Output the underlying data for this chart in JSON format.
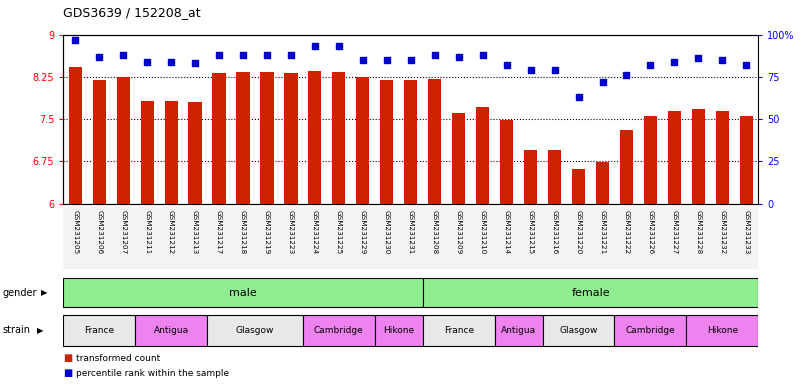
{
  "title": "GDS3639 / 152208_at",
  "samples": [
    "GSM231205",
    "GSM231206",
    "GSM231207",
    "GSM231211",
    "GSM231212",
    "GSM231213",
    "GSM231217",
    "GSM231218",
    "GSM231219",
    "GSM231223",
    "GSM231224",
    "GSM231225",
    "GSM231229",
    "GSM231230",
    "GSM231231",
    "GSM231208",
    "GSM231209",
    "GSM231210",
    "GSM231214",
    "GSM231215",
    "GSM231216",
    "GSM231220",
    "GSM231221",
    "GSM231222",
    "GSM231226",
    "GSM231227",
    "GSM231228",
    "GSM231232",
    "GSM231233"
  ],
  "bar_values": [
    8.42,
    8.2,
    8.25,
    7.82,
    7.82,
    7.8,
    8.32,
    8.33,
    8.33,
    8.32,
    8.35,
    8.34,
    8.25,
    8.2,
    8.19,
    8.21,
    7.6,
    7.72,
    7.48,
    6.95,
    6.95,
    6.62,
    6.74,
    7.3,
    7.56,
    7.64,
    7.68,
    7.65,
    7.55
  ],
  "percentile_values": [
    97,
    87,
    88,
    84,
    84,
    83,
    88,
    88,
    88,
    88,
    93,
    93,
    85,
    85,
    85,
    88,
    87,
    88,
    82,
    79,
    79,
    63,
    72,
    76,
    82,
    84,
    86,
    85,
    82
  ],
  "bar_color": "#cc2200",
  "percentile_color": "#0000cc",
  "ylim_left": [
    6.0,
    9.0
  ],
  "ylim_right": [
    0,
    100
  ],
  "yticks_left": [
    6.0,
    6.75,
    7.5,
    8.25,
    9.0
  ],
  "ytick_labels_left": [
    "6",
    "6.75",
    "7.5",
    "8.25",
    "9"
  ],
  "yticks_right": [
    0,
    25,
    50,
    75,
    100
  ],
  "ytick_labels_right": [
    "0",
    "25",
    "50",
    "75",
    "100%"
  ],
  "grid_values": [
    6.75,
    7.5,
    8.25
  ],
  "gender_male_count": 15,
  "gender_female_count": 14,
  "gender_color": "#90ee90",
  "strain_groups_male": [
    {
      "label": "France",
      "count": 3,
      "color": "#e8e8e8"
    },
    {
      "label": "Antigua",
      "count": 3,
      "color": "#ee82ee"
    },
    {
      "label": "Glasgow",
      "count": 4,
      "color": "#e8e8e8"
    },
    {
      "label": "Cambridge",
      "count": 3,
      "color": "#ee82ee"
    },
    {
      "label": "Hikone",
      "count": 2,
      "color": "#ee82ee"
    }
  ],
  "strain_groups_female": [
    {
      "label": "France",
      "count": 3,
      "color": "#e8e8e8"
    },
    {
      "label": "Antigua",
      "count": 2,
      "color": "#ee82ee"
    },
    {
      "label": "Glasgow",
      "count": 3,
      "color": "#e8e8e8"
    },
    {
      "label": "Cambridge",
      "count": 3,
      "color": "#ee82ee"
    },
    {
      "label": "Hikone",
      "count": 3,
      "color": "#ee82ee"
    }
  ],
  "background_color": "#ffffff",
  "plot_bg_color": "#ffffff"
}
